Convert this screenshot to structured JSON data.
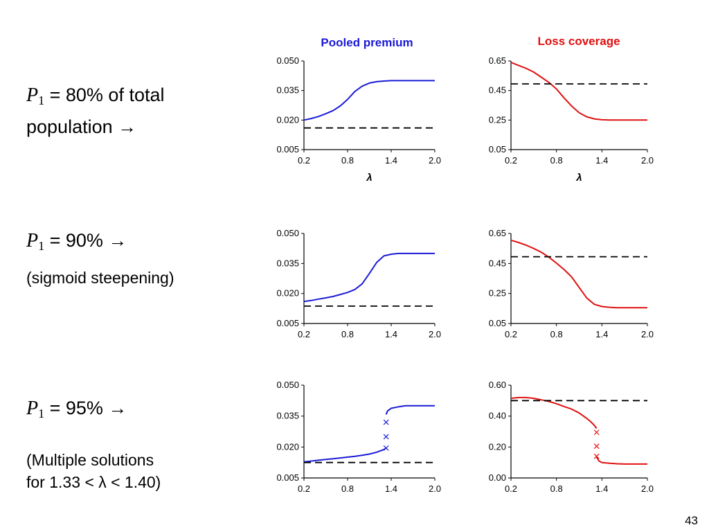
{
  "column_titles": {
    "pooled_premium": {
      "text": "Pooled premium",
      "color": "#1a1ad6"
    },
    "loss_coverage": {
      "text": "Loss coverage",
      "color": "#e01010"
    }
  },
  "rows": [
    {
      "p_symbol": "P",
      "p_sub": "1",
      "line1": "= 80% of total",
      "line2": "population →",
      "note": ""
    },
    {
      "p_symbol": "P",
      "p_sub": "1",
      "line1": "= 90% →",
      "line2": "",
      "note": "(sigmoid steepening)"
    },
    {
      "p_symbol": "P",
      "p_sub": "1",
      "line1": "= 95% →",
      "line2": "",
      "note": "(Multiple solutions",
      "note2": "for 1.33 < λ < 1.40)"
    }
  ],
  "page_number": "43",
  "chart_data": [
    {
      "type": "line",
      "panel": "row1-pooled-premium",
      "title": "",
      "xlabel": "λ",
      "ylabel": "",
      "xlim": [
        0.2,
        2.0
      ],
      "ylim": [
        0.005,
        0.05
      ],
      "xticks": [
        "0.2",
        "0.8",
        "1.4",
        "2.0"
      ],
      "yticks": [
        "0.005",
        "0.020",
        "0.035",
        "0.050"
      ],
      "series": [
        {
          "style": "solid",
          "color": "#1a1ad6",
          "x": [
            0.2,
            0.3,
            0.4,
            0.5,
            0.6,
            0.7,
            0.8,
            0.9,
            1.0,
            1.1,
            1.2,
            1.3,
            1.4,
            1.5,
            1.6,
            1.7,
            1.8,
            1.9,
            2.0
          ],
          "y": [
            0.02,
            0.0208,
            0.0218,
            0.0232,
            0.0248,
            0.0272,
            0.0305,
            0.0345,
            0.0372,
            0.0388,
            0.0395,
            0.0398,
            0.04,
            0.04,
            0.04,
            0.04,
            0.04,
            0.04,
            0.04
          ]
        },
        {
          "style": "dashed",
          "color": "#000000",
          "x": [
            0.2,
            2.0
          ],
          "y": [
            0.016,
            0.016
          ]
        }
      ]
    },
    {
      "type": "line",
      "panel": "row1-loss-coverage",
      "title": "",
      "xlabel": "λ",
      "ylabel": "",
      "xlim": [
        0.2,
        2.0
      ],
      "ylim": [
        0.05,
        0.65
      ],
      "xticks": [
        "0.2",
        "0.8",
        "1.4",
        "2.0"
      ],
      "yticks": [
        "0.05",
        "0.25",
        "0.45",
        "0.65"
      ],
      "series": [
        {
          "style": "solid",
          "color": "#e01010",
          "x": [
            0.2,
            0.3,
            0.4,
            0.5,
            0.6,
            0.7,
            0.8,
            0.9,
            1.0,
            1.1,
            1.2,
            1.3,
            1.4,
            1.5,
            1.6,
            1.8,
            2.0
          ],
          "y": [
            0.64,
            0.62,
            0.6,
            0.575,
            0.54,
            0.505,
            0.46,
            0.4,
            0.345,
            0.3,
            0.272,
            0.258,
            0.252,
            0.25,
            0.25,
            0.25,
            0.25
          ]
        },
        {
          "style": "dashed",
          "color": "#000000",
          "x": [
            0.2,
            2.0
          ],
          "y": [
            0.495,
            0.495
          ]
        }
      ]
    },
    {
      "type": "line",
      "panel": "row2-pooled-premium",
      "title": "",
      "xlabel": "",
      "ylabel": "",
      "xlim": [
        0.2,
        2.0
      ],
      "ylim": [
        0.005,
        0.05
      ],
      "xticks": [
        "0.2",
        "0.8",
        "1.4",
        "2.0"
      ],
      "yticks": [
        "0.005",
        "0.020",
        "0.035",
        "0.050"
      ],
      "series": [
        {
          "style": "solid",
          "color": "#1a1ad6",
          "x": [
            0.2,
            0.3,
            0.4,
            0.5,
            0.6,
            0.7,
            0.8,
            0.9,
            1.0,
            1.1,
            1.2,
            1.3,
            1.4,
            1.5,
            1.6,
            1.8,
            2.0
          ],
          "y": [
            0.016,
            0.0165,
            0.0172,
            0.0178,
            0.0185,
            0.0195,
            0.0205,
            0.022,
            0.0248,
            0.03,
            0.0355,
            0.0388,
            0.0396,
            0.04,
            0.04,
            0.04,
            0.04
          ]
        },
        {
          "style": "dashed",
          "color": "#000000",
          "x": [
            0.2,
            2.0
          ],
          "y": [
            0.0137,
            0.0137
          ]
        }
      ]
    },
    {
      "type": "line",
      "panel": "row2-loss-coverage",
      "title": "",
      "xlabel": "",
      "ylabel": "",
      "xlim": [
        0.2,
        2.0
      ],
      "ylim": [
        0.05,
        0.65
      ],
      "xticks": [
        "0.2",
        "0.8",
        "1.4",
        "2.0"
      ],
      "yticks": [
        "0.05",
        "0.25",
        "0.45",
        "0.65"
      ],
      "series": [
        {
          "style": "solid",
          "color": "#e01010",
          "x": [
            0.2,
            0.3,
            0.4,
            0.5,
            0.6,
            0.7,
            0.8,
            0.9,
            1.0,
            1.1,
            1.2,
            1.3,
            1.4,
            1.5,
            1.6,
            1.8,
            2.0
          ],
          "y": [
            0.605,
            0.59,
            0.572,
            0.55,
            0.525,
            0.492,
            0.452,
            0.41,
            0.36,
            0.29,
            0.22,
            0.178,
            0.163,
            0.158,
            0.155,
            0.155,
            0.155
          ]
        },
        {
          "style": "dashed",
          "color": "#000000",
          "x": [
            0.2,
            2.0
          ],
          "y": [
            0.495,
            0.495
          ]
        }
      ]
    },
    {
      "type": "line",
      "panel": "row3-pooled-premium",
      "title": "",
      "xlabel": "",
      "ylabel": "",
      "xlim": [
        0.2,
        2.0
      ],
      "ylim": [
        0.005,
        0.05
      ],
      "xticks": [
        "0.2",
        "0.8",
        "1.4",
        "2.0"
      ],
      "yticks": [
        "0.005",
        "0.020",
        "0.035",
        "0.050"
      ],
      "series": [
        {
          "style": "solid",
          "color": "#1a1ad6",
          "x": [
            0.2,
            0.3,
            0.4,
            0.5,
            0.6,
            0.7,
            0.8,
            0.9,
            1.0,
            1.1,
            1.2,
            1.3,
            1.33
          ],
          "y": [
            0.0128,
            0.0132,
            0.0136,
            0.014,
            0.0143,
            0.0147,
            0.0151,
            0.0155,
            0.016,
            0.0166,
            0.0175,
            0.0188,
            0.0195
          ]
        },
        {
          "style": "solid",
          "color": "#1a1ad6",
          "x": [
            1.33,
            1.35,
            1.4,
            1.5,
            1.6,
            1.7,
            1.8,
            1.9,
            2.0
          ],
          "y": [
            0.0358,
            0.0375,
            0.0388,
            0.0395,
            0.04,
            0.04,
            0.04,
            0.04,
            0.04
          ]
        },
        {
          "style": "markers",
          "marker": "x",
          "color": "#1a1ad6",
          "x": [
            1.33,
            1.33,
            1.33
          ],
          "y": [
            0.0195,
            0.025,
            0.032
          ]
        },
        {
          "style": "dashed",
          "color": "#000000",
          "x": [
            0.2,
            2.0
          ],
          "y": [
            0.0125,
            0.0125
          ]
        }
      ]
    },
    {
      "type": "line",
      "panel": "row3-loss-coverage",
      "title": "",
      "xlabel": "",
      "ylabel": "",
      "xlim": [
        0.2,
        2.0
      ],
      "ylim": [
        0.0,
        0.6
      ],
      "xticks": [
        "0.2",
        "0.8",
        "1.4",
        "2.0"
      ],
      "yticks": [
        "0.00",
        "0.20",
        "0.40",
        "0.60"
      ],
      "series": [
        {
          "style": "solid",
          "color": "#e01010",
          "x": [
            0.2,
            0.3,
            0.4,
            0.5,
            0.6,
            0.7,
            0.8,
            0.9,
            1.0,
            1.1,
            1.2,
            1.25,
            1.3,
            1.33
          ],
          "y": [
            0.515,
            0.52,
            0.52,
            0.515,
            0.505,
            0.495,
            0.48,
            0.462,
            0.445,
            0.42,
            0.385,
            0.365,
            0.34,
            0.32
          ]
        },
        {
          "style": "solid",
          "color": "#e01010",
          "x": [
            1.33,
            1.36,
            1.4,
            1.5,
            1.6,
            1.7,
            1.8,
            1.9,
            2.0
          ],
          "y": [
            0.135,
            0.11,
            0.1,
            0.095,
            0.092,
            0.09,
            0.09,
            0.09,
            0.09
          ]
        },
        {
          "style": "markers",
          "marker": "x",
          "color": "#e01010",
          "x": [
            1.33,
            1.33,
            1.33
          ],
          "y": [
            0.14,
            0.205,
            0.295
          ]
        },
        {
          "style": "dashed",
          "color": "#000000",
          "x": [
            0.2,
            2.0
          ],
          "y": [
            0.5,
            0.5
          ]
        }
      ]
    }
  ]
}
